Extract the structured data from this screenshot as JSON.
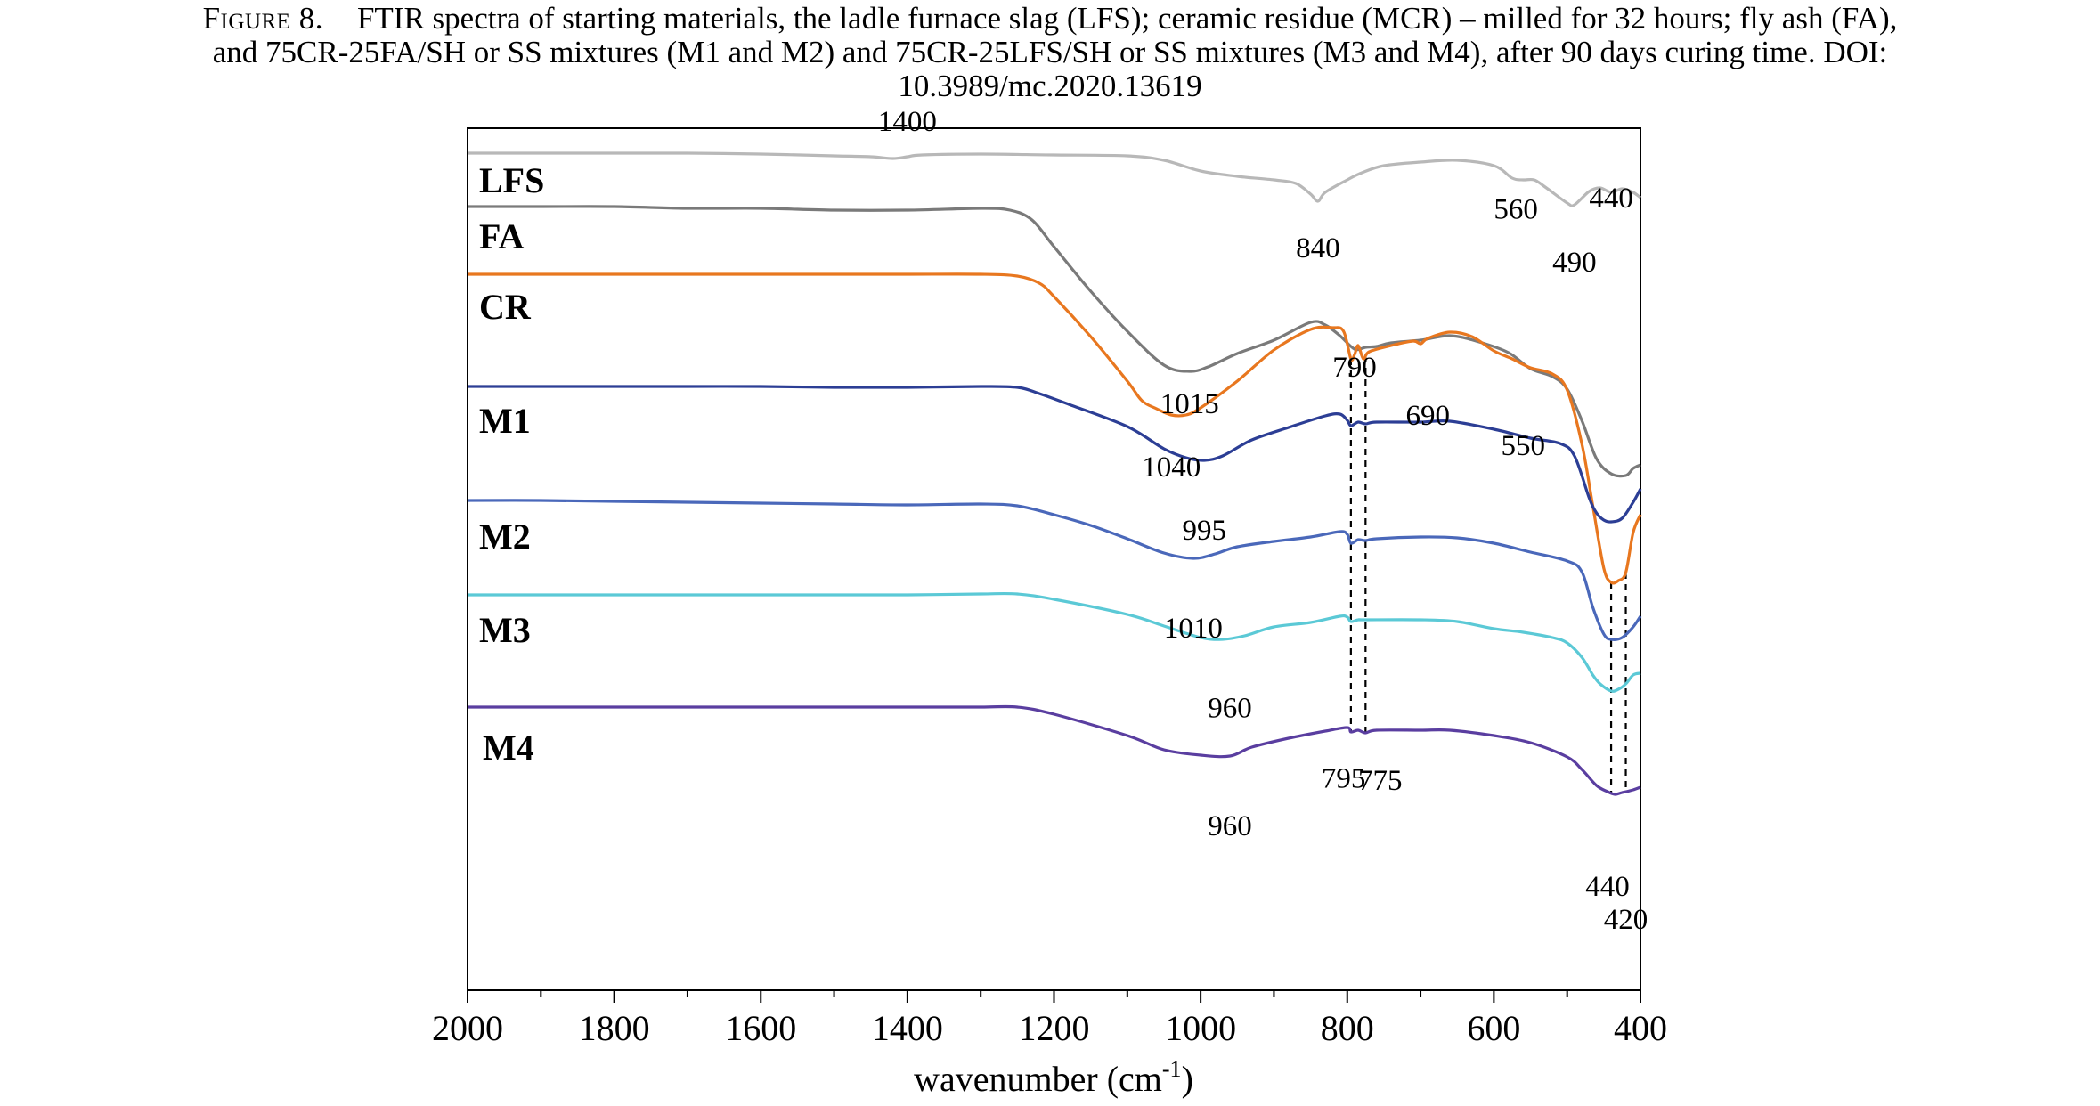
{
  "caption": {
    "label": "Figure 8.",
    "line1": "FTIR spectra of starting materials, the ladle furnace slag (LFS); ceramic residue (MCR) – milled for 32 hours; fly ash (FA),",
    "line2": "and 75CR-25FA/SH or SS mixtures (M1 and M2) and 75CR-25LFS/SH or SS mixtures (M3 and M4), after 90 days curing time. DOI:",
    "line3": "10.3989/mc.2020.13619"
  },
  "chart_data": {
    "type": "line",
    "xlabel_main": "wavenumber (cm",
    "xlabel_sup": "-1",
    "xlabel_close": ")",
    "xlim": [
      2000,
      400
    ],
    "x_reversed": true,
    "x_ticks": [
      2000,
      1800,
      1600,
      1400,
      1200,
      1000,
      800,
      600,
      400
    ],
    "ylabel": "",
    "y_ticks_shown": false,
    "grid": false,
    "legend": "none (series labelled inline at left)",
    "series": [
      {
        "name": "LFS",
        "color": "#b8b8b8",
        "offset": 0,
        "points": [
          [
            2000,
            0.0
          ],
          [
            1900,
            0.0
          ],
          [
            1800,
            0.0
          ],
          [
            1700,
            0.0
          ],
          [
            1600,
            -0.01
          ],
          [
            1500,
            -0.03
          ],
          [
            1450,
            -0.04
          ],
          [
            1420,
            -0.06
          ],
          [
            1400,
            -0.04
          ],
          [
            1380,
            -0.02
          ],
          [
            1300,
            -0.01
          ],
          [
            1200,
            -0.02
          ],
          [
            1100,
            -0.03
          ],
          [
            1050,
            -0.08
          ],
          [
            1000,
            -0.2
          ],
          [
            950,
            -0.26
          ],
          [
            900,
            -0.3
          ],
          [
            870,
            -0.34
          ],
          [
            850,
            -0.46
          ],
          [
            840,
            -0.54
          ],
          [
            830,
            -0.44
          ],
          [
            800,
            -0.3
          ],
          [
            780,
            -0.22
          ],
          [
            750,
            -0.14
          ],
          [
            700,
            -0.1
          ],
          [
            650,
            -0.08
          ],
          [
            600,
            -0.14
          ],
          [
            575,
            -0.28
          ],
          [
            560,
            -0.3
          ],
          [
            545,
            -0.3
          ],
          [
            530,
            -0.38
          ],
          [
            500,
            -0.56
          ],
          [
            490,
            -0.58
          ],
          [
            470,
            -0.43
          ],
          [
            455,
            -0.39
          ],
          [
            440,
            -0.44
          ],
          [
            425,
            -0.4
          ],
          [
            410,
            -0.44
          ],
          [
            400,
            -0.5
          ]
        ]
      },
      {
        "name": "FA",
        "color": "#7a7a7a",
        "offset": -0.6,
        "points": [
          [
            2000,
            0.0
          ],
          [
            1900,
            0.0
          ],
          [
            1800,
            0.0
          ],
          [
            1700,
            -0.02
          ],
          [
            1600,
            -0.02
          ],
          [
            1500,
            -0.04
          ],
          [
            1400,
            -0.04
          ],
          [
            1300,
            -0.02
          ],
          [
            1260,
            -0.04
          ],
          [
            1230,
            -0.15
          ],
          [
            1200,
            -0.45
          ],
          [
            1150,
            -0.95
          ],
          [
            1100,
            -1.4
          ],
          [
            1050,
            -1.78
          ],
          [
            1015,
            -1.85
          ],
          [
            990,
            -1.8
          ],
          [
            950,
            -1.65
          ],
          [
            900,
            -1.5
          ],
          [
            850,
            -1.3
          ],
          [
            830,
            -1.33
          ],
          [
            810,
            -1.45
          ],
          [
            790,
            -1.6
          ],
          [
            775,
            -1.58
          ],
          [
            760,
            -1.57
          ],
          [
            740,
            -1.53
          ],
          [
            700,
            -1.5
          ],
          [
            660,
            -1.45
          ],
          [
            620,
            -1.52
          ],
          [
            580,
            -1.64
          ],
          [
            550,
            -1.82
          ],
          [
            520,
            -1.91
          ],
          [
            500,
            -2.05
          ],
          [
            480,
            -2.4
          ],
          [
            460,
            -2.83
          ],
          [
            440,
            -3.0
          ],
          [
            420,
            -3.02
          ],
          [
            410,
            -2.94
          ],
          [
            400,
            -2.9
          ]
        ]
      },
      {
        "name": "CR",
        "color": "#e8771f",
        "offset": -1.36,
        "points": [
          [
            2000,
            0.0
          ],
          [
            1900,
            0.0
          ],
          [
            1800,
            0.0
          ],
          [
            1700,
            0.0
          ],
          [
            1600,
            0.0
          ],
          [
            1500,
            0.0
          ],
          [
            1400,
            0.0
          ],
          [
            1300,
            0.0
          ],
          [
            1250,
            -0.02
          ],
          [
            1220,
            -0.1
          ],
          [
            1200,
            -0.25
          ],
          [
            1150,
            -0.7
          ],
          [
            1100,
            -1.2
          ],
          [
            1080,
            -1.42
          ],
          [
            1060,
            -1.51
          ],
          [
            1040,
            -1.58
          ],
          [
            1020,
            -1.58
          ],
          [
            1000,
            -1.5
          ],
          [
            950,
            -1.2
          ],
          [
            900,
            -0.85
          ],
          [
            850,
            -0.62
          ],
          [
            820,
            -0.6
          ],
          [
            805,
            -0.64
          ],
          [
            795,
            -0.95
          ],
          [
            790,
            -0.9
          ],
          [
            785,
            -0.8
          ],
          [
            778,
            -0.95
          ],
          [
            770,
            -0.87
          ],
          [
            740,
            -0.8
          ],
          [
            710,
            -0.75
          ],
          [
            700,
            -0.78
          ],
          [
            690,
            -0.72
          ],
          [
            660,
            -0.65
          ],
          [
            630,
            -0.7
          ],
          [
            600,
            -0.86
          ],
          [
            575,
            -0.95
          ],
          [
            550,
            -1.05
          ],
          [
            520,
            -1.12
          ],
          [
            500,
            -1.3
          ],
          [
            480,
            -1.9
          ],
          [
            465,
            -2.6
          ],
          [
            450,
            -3.3
          ],
          [
            440,
            -3.46
          ],
          [
            430,
            -3.44
          ],
          [
            420,
            -3.35
          ],
          [
            410,
            -2.9
          ],
          [
            400,
            -2.7
          ]
        ]
      },
      {
        "name": "M1",
        "color": "#2c3e95",
        "offset": -2.62,
        "points": [
          [
            2000,
            0.0
          ],
          [
            1900,
            0.0
          ],
          [
            1800,
            0.0
          ],
          [
            1700,
            0.0
          ],
          [
            1600,
            0.0
          ],
          [
            1500,
            -0.01
          ],
          [
            1400,
            -0.01
          ],
          [
            1300,
            0.0
          ],
          [
            1250,
            -0.01
          ],
          [
            1220,
            -0.08
          ],
          [
            1180,
            -0.2
          ],
          [
            1100,
            -0.45
          ],
          [
            1050,
            -0.7
          ],
          [
            1020,
            -0.8
          ],
          [
            995,
            -0.83
          ],
          [
            970,
            -0.78
          ],
          [
            930,
            -0.6
          ],
          [
            880,
            -0.46
          ],
          [
            830,
            -0.33
          ],
          [
            810,
            -0.31
          ],
          [
            800,
            -0.38
          ],
          [
            795,
            -0.44
          ],
          [
            785,
            -0.4
          ],
          [
            775,
            -0.42
          ],
          [
            760,
            -0.4
          ],
          [
            700,
            -0.4
          ],
          [
            660,
            -0.39
          ],
          [
            600,
            -0.48
          ],
          [
            550,
            -0.58
          ],
          [
            510,
            -0.64
          ],
          [
            490,
            -0.78
          ],
          [
            470,
            -1.25
          ],
          [
            460,
            -1.42
          ],
          [
            450,
            -1.5
          ],
          [
            440,
            -1.52
          ],
          [
            425,
            -1.48
          ],
          [
            410,
            -1.3
          ],
          [
            400,
            -1.15
          ]
        ]
      },
      {
        "name": "M2",
        "color": "#4a68ba",
        "offset": -3.9,
        "points": [
          [
            2000,
            0.0
          ],
          [
            1900,
            0.0
          ],
          [
            1800,
            -0.01
          ],
          [
            1700,
            -0.02
          ],
          [
            1600,
            -0.03
          ],
          [
            1500,
            -0.04
          ],
          [
            1400,
            -0.05
          ],
          [
            1300,
            -0.04
          ],
          [
            1250,
            -0.06
          ],
          [
            1200,
            -0.16
          ],
          [
            1150,
            -0.28
          ],
          [
            1100,
            -0.43
          ],
          [
            1050,
            -0.59
          ],
          [
            1010,
            -0.65
          ],
          [
            980,
            -0.6
          ],
          [
            950,
            -0.52
          ],
          [
            900,
            -0.46
          ],
          [
            850,
            -0.41
          ],
          [
            810,
            -0.35
          ],
          [
            800,
            -0.38
          ],
          [
            795,
            -0.48
          ],
          [
            785,
            -0.44
          ],
          [
            775,
            -0.45
          ],
          [
            760,
            -0.43
          ],
          [
            700,
            -0.41
          ],
          [
            650,
            -0.42
          ],
          [
            600,
            -0.48
          ],
          [
            550,
            -0.58
          ],
          [
            500,
            -0.68
          ],
          [
            480,
            -0.8
          ],
          [
            465,
            -1.2
          ],
          [
            450,
            -1.5
          ],
          [
            440,
            -1.56
          ],
          [
            425,
            -1.54
          ],
          [
            410,
            -1.42
          ],
          [
            400,
            -1.3
          ]
        ]
      },
      {
        "name": "M3",
        "color": "#5bc9d6",
        "offset": -4.96,
        "points": [
          [
            2000,
            0.0
          ],
          [
            1900,
            0.0
          ],
          [
            1800,
            0.0
          ],
          [
            1700,
            0.0
          ],
          [
            1600,
            0.0
          ],
          [
            1500,
            0.0
          ],
          [
            1400,
            0.0
          ],
          [
            1300,
            0.01
          ],
          [
            1250,
            0.01
          ],
          [
            1200,
            -0.05
          ],
          [
            1100,
            -0.22
          ],
          [
            1050,
            -0.35
          ],
          [
            1000,
            -0.48
          ],
          [
            970,
            -0.5
          ],
          [
            940,
            -0.46
          ],
          [
            900,
            -0.36
          ],
          [
            850,
            -0.31
          ],
          [
            810,
            -0.24
          ],
          [
            800,
            -0.25
          ],
          [
            795,
            -0.3
          ],
          [
            785,
            -0.28
          ],
          [
            775,
            -0.28
          ],
          [
            700,
            -0.28
          ],
          [
            650,
            -0.3
          ],
          [
            600,
            -0.38
          ],
          [
            560,
            -0.42
          ],
          [
            520,
            -0.48
          ],
          [
            500,
            -0.54
          ],
          [
            480,
            -0.7
          ],
          [
            465,
            -0.9
          ],
          [
            455,
            -1.0
          ],
          [
            440,
            -1.08
          ],
          [
            430,
            -1.06
          ],
          [
            420,
            -1.0
          ],
          [
            410,
            -0.9
          ],
          [
            400,
            -0.88
          ]
        ]
      },
      {
        "name": "M4",
        "color": "#5a3ea0",
        "offset": -6.22,
        "points": [
          [
            2000,
            0.0
          ],
          [
            1900,
            0.0
          ],
          [
            1800,
            0.0
          ],
          [
            1700,
            0.0
          ],
          [
            1600,
            0.0
          ],
          [
            1500,
            0.0
          ],
          [
            1400,
            0.0
          ],
          [
            1300,
            0.0
          ],
          [
            1250,
            0.0
          ],
          [
            1200,
            -0.08
          ],
          [
            1100,
            -0.32
          ],
          [
            1050,
            -0.48
          ],
          [
            1000,
            -0.54
          ],
          [
            960,
            -0.55
          ],
          [
            930,
            -0.45
          ],
          [
            880,
            -0.35
          ],
          [
            830,
            -0.27
          ],
          [
            800,
            -0.23
          ],
          [
            795,
            -0.28
          ],
          [
            785,
            -0.26
          ],
          [
            775,
            -0.29
          ],
          [
            760,
            -0.26
          ],
          [
            700,
            -0.26
          ],
          [
            660,
            -0.26
          ],
          [
            600,
            -0.32
          ],
          [
            550,
            -0.4
          ],
          [
            500,
            -0.56
          ],
          [
            480,
            -0.7
          ],
          [
            460,
            -0.88
          ],
          [
            445,
            -0.95
          ],
          [
            435,
            -0.98
          ],
          [
            425,
            -0.96
          ],
          [
            410,
            -0.93
          ],
          [
            400,
            -0.9
          ]
        ]
      }
    ],
    "annotations": [
      {
        "text": "1400",
        "x": 1400,
        "series": "LFS",
        "dy": 0.4
      },
      {
        "text": "840",
        "x": 840,
        "series": "LFS",
        "dy": -0.52
      },
      {
        "text": "560",
        "x": 570,
        "series": "LFS",
        "dy": -0.34
      },
      {
        "text": "490",
        "x": 490,
        "series": "LFS",
        "dy": -0.64
      },
      {
        "text": "440",
        "x": 440,
        "series": "LFS",
        "dy": -0.06
      },
      {
        "text": "1015",
        "x": 1015,
        "series": "FA",
        "dy": -0.36
      },
      {
        "text": "790",
        "x": 790,
        "series": "FA",
        "dy": -0.2
      },
      {
        "text": "550",
        "x": 560,
        "series": "FA",
        "dy": -0.92
      },
      {
        "text": "690",
        "x": 690,
        "series": "CR",
        "dy": -0.86
      },
      {
        "text": "1040",
        "x": 1040,
        "series": "CR",
        "dy": -0.58
      },
      {
        "text": "995",
        "x": 995,
        "series": "M1",
        "dy": -0.78
      },
      {
        "text": "1010",
        "x": 1010,
        "series": "M2",
        "dy": -0.78
      },
      {
        "text": "960",
        "x": 960,
        "series": "M3",
        "dy": -0.78
      },
      {
        "text": "960",
        "x": 960,
        "series": "M4",
        "dy": -0.78
      },
      {
        "text": "795",
        "x": 805,
        "series": "M4",
        "dy": -0.56
      },
      {
        "text": "775",
        "x": 755,
        "series": "M4",
        "dy": -0.56
      },
      {
        "text": "440",
        "x": 445,
        "series": "M4",
        "dy": -1.06
      },
      {
        "text": "420",
        "x": 420,
        "series": "M4",
        "dy": -1.43
      }
    ],
    "guides": [
      {
        "x": 795,
        "from_series": "CR",
        "to_series": "M4"
      },
      {
        "x": 775,
        "from_series": "CR",
        "to_series": "M4"
      },
      {
        "x": 440,
        "from_series": "CR",
        "to_series": "M4"
      },
      {
        "x": 420,
        "from_series": "CR",
        "to_series": "M4"
      }
    ]
  }
}
